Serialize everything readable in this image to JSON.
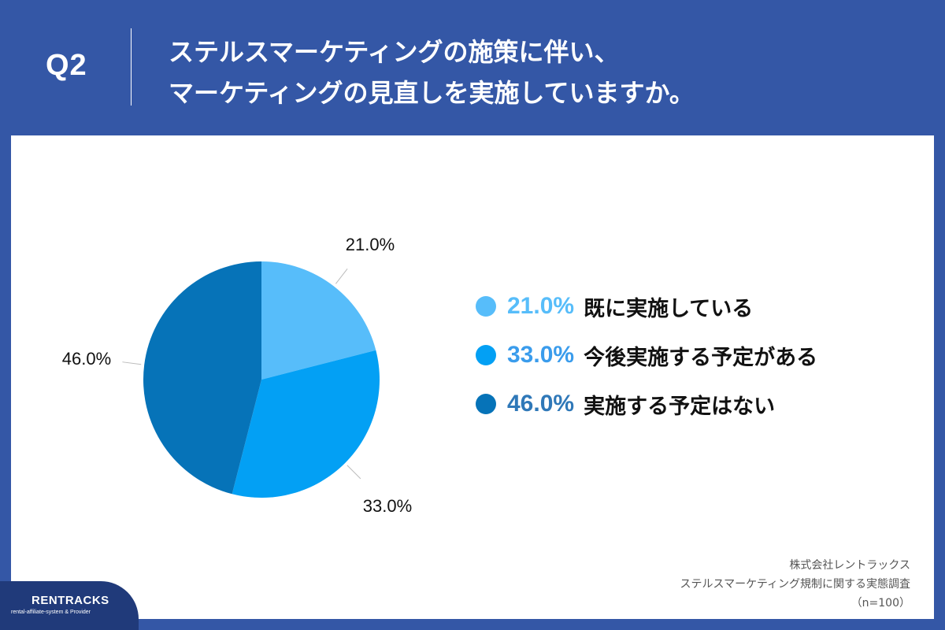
{
  "header": {
    "q_label": "Q2",
    "title_line1": "ステルスマーケティングの施策に伴い、",
    "title_line2": "マーケティングの見直しを実施していますか。"
  },
  "chart_data": {
    "type": "pie",
    "slices": [
      {
        "label": "既に実施している",
        "value": 21.0,
        "value_label": "21.0%",
        "color": "#57bdfa"
      },
      {
        "label": "今後実施する予定がある",
        "value": 33.0,
        "value_label": "33.0%",
        "color": "#03a0f4"
      },
      {
        "label": "実施する予定はない",
        "value": 46.0,
        "value_label": "46.0%",
        "color": "#0673b8"
      }
    ],
    "legend_position": "right",
    "legend_pct_colors": [
      "#57bdfa",
      "#3a9cec",
      "#2f78b8"
    ]
  },
  "source": {
    "line1": "株式会社レントラックス",
    "line2": "ステルスマーケティング規制に関する実態調査",
    "line3": "（n=100）"
  },
  "logo": {
    "main": "RENTRACKS",
    "sub": "rental-affiliate-system & Provider"
  }
}
